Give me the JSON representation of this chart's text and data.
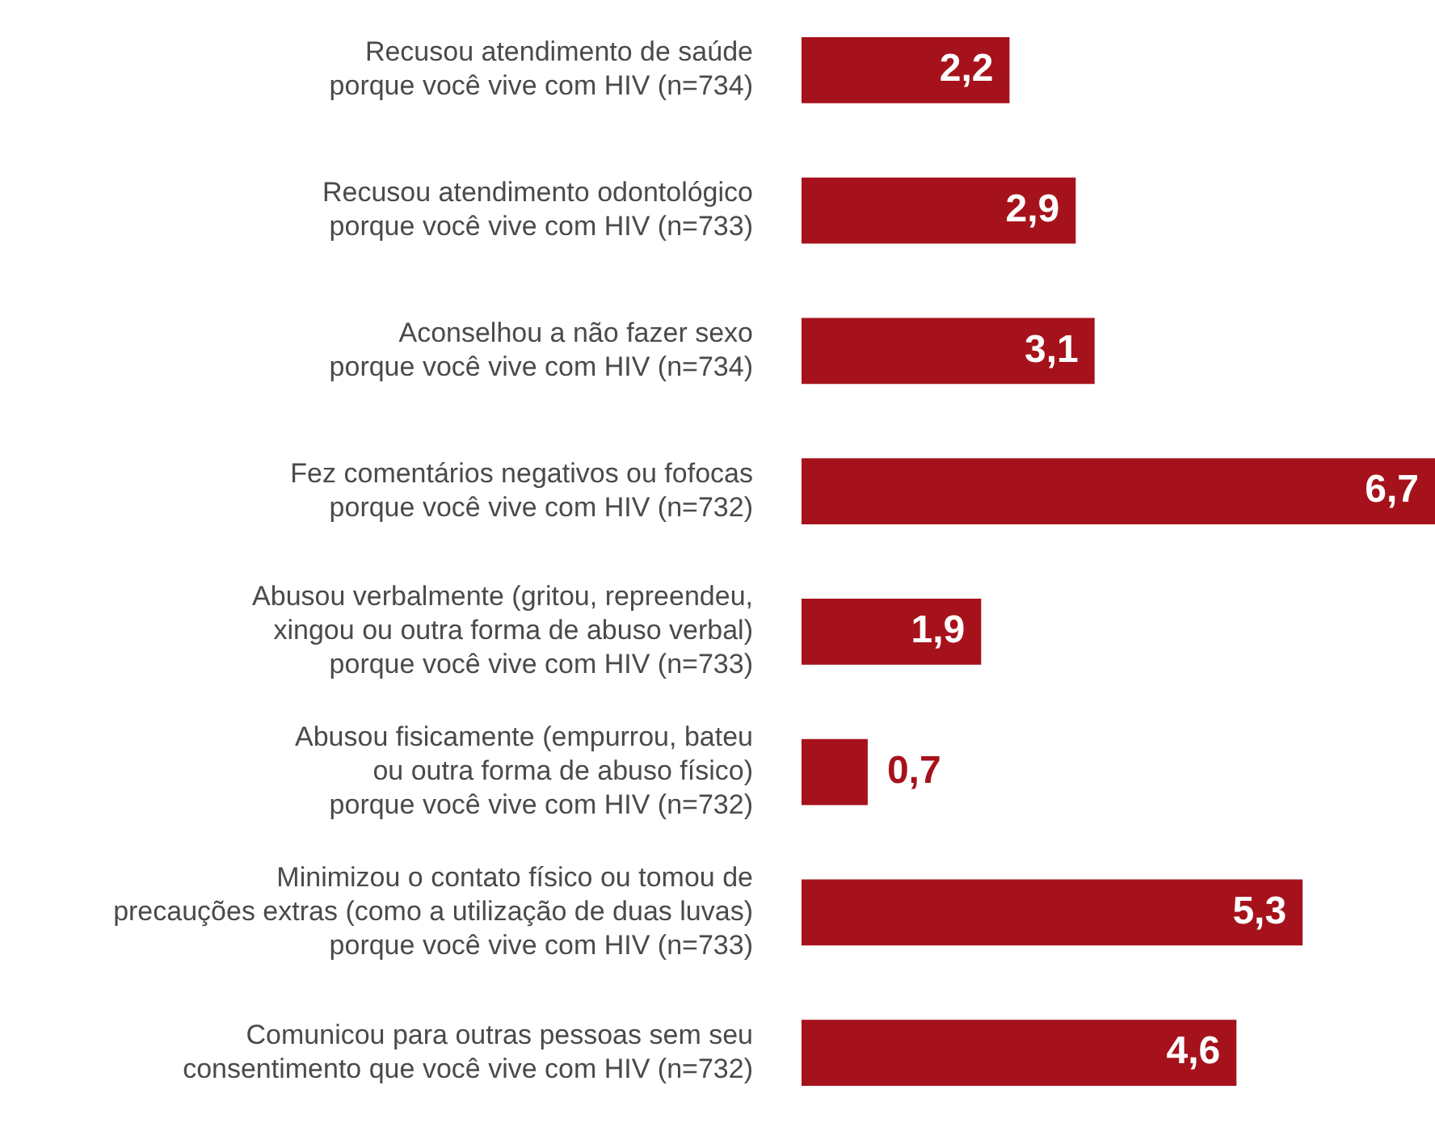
{
  "chart_data": {
    "type": "bar",
    "orientation": "horizontal",
    "categories": [
      "Recusou atendimento de saúde\nporque você vive com HIV (n=734)",
      "Recusou atendimento odontológico\nporque você vive com HIV (n=733)",
      "Aconselhou a não fazer sexo\nporque você vive com HIV (n=734)",
      "Fez comentários negativos ou fofocas\nporque você vive com HIV (n=732)",
      "Abusou verbalmente (gritou, repreendeu,\nxingou ou outra forma de abuso verbal)\nporque você vive com HIV (n=733)",
      "Abusou fisicamente (empurrou, bateu\nou outra forma de abuso físico)\nporque você vive com HIV (n=732)",
      "Minimizou o contato físico ou tomou de\nprecauções extras (como a utilização de duas luvas)\nporque você vive com HIV (n=733)",
      "Comunicou para outras pessoas sem seu\nconsentimento que você vive com HIV (n=732)"
    ],
    "values": [
      2.2,
      2.9,
      3.1,
      6.7,
      1.9,
      0.7,
      5.3,
      4.6
    ],
    "value_labels": [
      "2,2",
      "2,9",
      "3,1",
      "6,7",
      "1,9",
      "0,7",
      "5,3",
      "4,6"
    ],
    "color": "#a6121b",
    "legend": false
  }
}
